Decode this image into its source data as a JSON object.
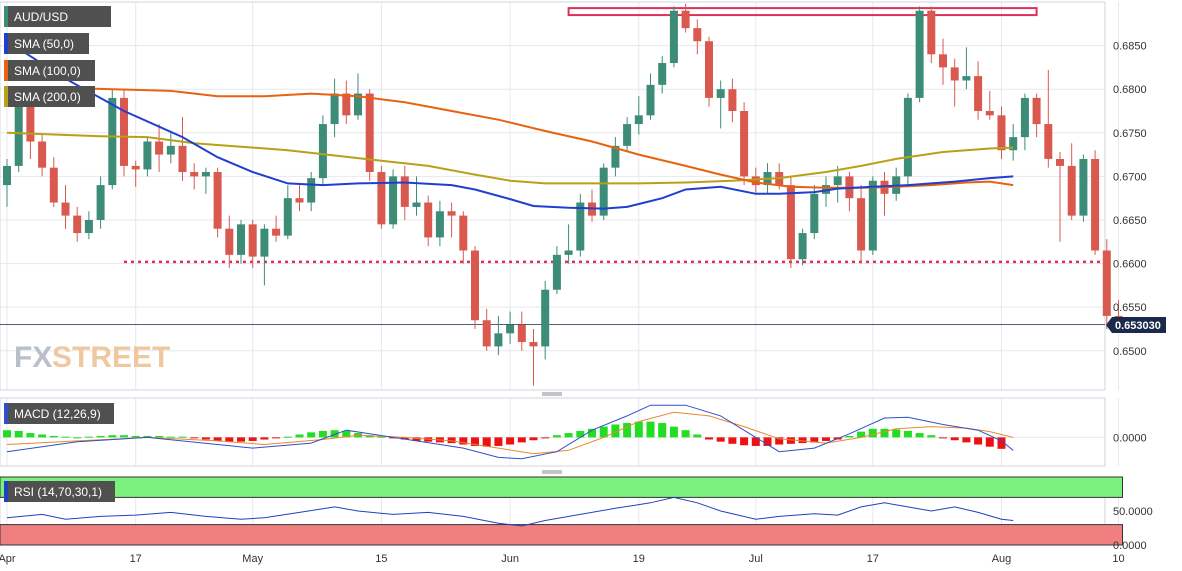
{
  "colors": {
    "up": "#3c8c78",
    "down": "#d9594f",
    "sma50": "#1f3fcf",
    "sma100": "#e8620f",
    "sma200": "#b8a018",
    "macd_line": "#3050c8",
    "signal_line": "#e88a30",
    "hist_pos": "#22dd22",
    "hist_neg": "#ee1111",
    "rsi_line": "#2040c0",
    "rsi_over": "#7cf07c",
    "rsi_under": "#f08080",
    "level": "#e0305a",
    "grid": "#e6e8ec",
    "text": "#333333",
    "legend_bg": "#505050"
  },
  "legend": {
    "symbol": "AUD/USD",
    "sma50": "SMA (50,0)",
    "sma100": "SMA (100,0)",
    "sma200": "SMA (200,0)",
    "macd": "MACD (12,26,9)",
    "rsi": "RSI (14,70,30,1)"
  },
  "watermark": {
    "fx": "FX",
    "street": "STREET"
  },
  "last_price_label": "0.653030",
  "x_axis": {
    "labels": [
      {
        "i": 0,
        "text": "Apr"
      },
      {
        "i": 11,
        "text": "17"
      },
      {
        "i": 21,
        "text": "May"
      },
      {
        "i": 32,
        "text": "15"
      },
      {
        "i": 43,
        "text": "Jun"
      },
      {
        "i": 54,
        "text": "19"
      },
      {
        "i": 64,
        "text": "Jul"
      },
      {
        "i": 74,
        "text": "17"
      },
      {
        "i": 85,
        "text": "Aug"
      },
      {
        "i": 95,
        "text": "10"
      }
    ]
  },
  "macd_axis": {
    "ticks": [
      0
    ],
    "labels": [
      "0.0000"
    ],
    "ylim": [
      -0.004,
      0.0055
    ]
  },
  "rsi_axis": {
    "ticks": [
      50,
      0
    ],
    "labels": [
      "50.0000",
      "0.0000"
    ],
    "ylim": [
      0,
      100
    ]
  },
  "chart_data": {
    "type": "candlestick",
    "ylim": [
      0.6455,
      0.69
    ],
    "y_ticks": [
      0.65,
      0.655,
      0.66,
      0.665,
      0.67,
      0.675,
      0.68,
      0.685
    ],
    "y_tick_labels": [
      "0.6500",
      "0.6550",
      "0.6600",
      "0.6650",
      "0.6700",
      "0.6750",
      "0.6800",
      "0.6850"
    ],
    "last_price": 0.65303,
    "support_line": 0.6602,
    "resistance_zone": [
      0.6885,
      0.6893
    ],
    "candles": [
      [
        0.669,
        0.672,
        0.6665,
        0.6712
      ],
      [
        0.6712,
        0.679,
        0.6705,
        0.678
      ],
      [
        0.678,
        0.68,
        0.672,
        0.674
      ],
      [
        0.674,
        0.6748,
        0.67,
        0.671
      ],
      [
        0.671,
        0.6722,
        0.6665,
        0.667
      ],
      [
        0.667,
        0.669,
        0.664,
        0.6655
      ],
      [
        0.6655,
        0.6665,
        0.6625,
        0.6635
      ],
      [
        0.6635,
        0.666,
        0.6628,
        0.665
      ],
      [
        0.665,
        0.67,
        0.664,
        0.669
      ],
      [
        0.669,
        0.68,
        0.6685,
        0.679
      ],
      [
        0.679,
        0.68,
        0.67,
        0.6712
      ],
      [
        0.6712,
        0.6718,
        0.6688,
        0.6708
      ],
      [
        0.6708,
        0.6745,
        0.67,
        0.674
      ],
      [
        0.674,
        0.676,
        0.6705,
        0.6725
      ],
      [
        0.6725,
        0.675,
        0.6715,
        0.6735
      ],
      [
        0.6735,
        0.6768,
        0.6695,
        0.6705
      ],
      [
        0.6705,
        0.6715,
        0.6685,
        0.67
      ],
      [
        0.67,
        0.671,
        0.668,
        0.6705
      ],
      [
        0.6705,
        0.671,
        0.663,
        0.664
      ],
      [
        0.664,
        0.6655,
        0.6595,
        0.661
      ],
      [
        0.661,
        0.665,
        0.66,
        0.6645
      ],
      [
        0.6645,
        0.665,
        0.6595,
        0.6608
      ],
      [
        0.6608,
        0.6645,
        0.6575,
        0.664
      ],
      [
        0.664,
        0.6655,
        0.6625,
        0.6632
      ],
      [
        0.6632,
        0.669,
        0.6628,
        0.6675
      ],
      [
        0.6675,
        0.669,
        0.666,
        0.667
      ],
      [
        0.667,
        0.6705,
        0.666,
        0.6698
      ],
      [
        0.6698,
        0.677,
        0.669,
        0.676
      ],
      [
        0.676,
        0.6812,
        0.6745,
        0.6795
      ],
      [
        0.6795,
        0.681,
        0.676,
        0.677
      ],
      [
        0.677,
        0.6818,
        0.6765,
        0.6795
      ],
      [
        0.6795,
        0.68,
        0.6695,
        0.6705
      ],
      [
        0.6705,
        0.6712,
        0.664,
        0.6645
      ],
      [
        0.6645,
        0.6708,
        0.664,
        0.67
      ],
      [
        0.67,
        0.6712,
        0.665,
        0.6665
      ],
      [
        0.6665,
        0.67,
        0.6655,
        0.667
      ],
      [
        0.667,
        0.6678,
        0.662,
        0.663
      ],
      [
        0.663,
        0.6672,
        0.662,
        0.666
      ],
      [
        0.666,
        0.667,
        0.663,
        0.6655
      ],
      [
        0.6655,
        0.666,
        0.66,
        0.6615
      ],
      [
        0.6615,
        0.662,
        0.6525,
        0.6535
      ],
      [
        0.6535,
        0.6548,
        0.65,
        0.6505
      ],
      [
        0.6505,
        0.654,
        0.6495,
        0.652
      ],
      [
        0.652,
        0.6545,
        0.6508,
        0.653
      ],
      [
        0.653,
        0.6545,
        0.65,
        0.651
      ],
      [
        0.651,
        0.6525,
        0.646,
        0.6505
      ],
      [
        0.6505,
        0.658,
        0.649,
        0.657
      ],
      [
        0.657,
        0.662,
        0.6565,
        0.661
      ],
      [
        0.661,
        0.6645,
        0.66,
        0.6615
      ],
      [
        0.6615,
        0.668,
        0.6608,
        0.667
      ],
      [
        0.667,
        0.6685,
        0.6648,
        0.6655
      ],
      [
        0.6655,
        0.6715,
        0.665,
        0.671
      ],
      [
        0.671,
        0.6745,
        0.67,
        0.6735
      ],
      [
        0.6735,
        0.6768,
        0.6728,
        0.676
      ],
      [
        0.676,
        0.6792,
        0.6748,
        0.677
      ],
      [
        0.677,
        0.6818,
        0.6765,
        0.6805
      ],
      [
        0.6805,
        0.6838,
        0.6795,
        0.683
      ],
      [
        0.683,
        0.6895,
        0.6825,
        0.689
      ],
      [
        0.689,
        0.6898,
        0.6865,
        0.687
      ],
      [
        0.687,
        0.688,
        0.684,
        0.6855
      ],
      [
        0.6855,
        0.686,
        0.678,
        0.679
      ],
      [
        0.679,
        0.681,
        0.6755,
        0.68
      ],
      [
        0.68,
        0.6812,
        0.6762,
        0.6775
      ],
      [
        0.6775,
        0.6785,
        0.669,
        0.67
      ],
      [
        0.67,
        0.671,
        0.668,
        0.669
      ],
      [
        0.669,
        0.6715,
        0.668,
        0.6705
      ],
      [
        0.6705,
        0.6715,
        0.6685,
        0.669
      ],
      [
        0.669,
        0.67,
        0.6595,
        0.6605
      ],
      [
        0.6605,
        0.664,
        0.6598,
        0.6635
      ],
      [
        0.6635,
        0.669,
        0.6628,
        0.668
      ],
      [
        0.668,
        0.67,
        0.6665,
        0.669
      ],
      [
        0.669,
        0.6712,
        0.667,
        0.67
      ],
      [
        0.67,
        0.6705,
        0.666,
        0.6675
      ],
      [
        0.6675,
        0.669,
        0.66,
        0.6615
      ],
      [
        0.6615,
        0.67,
        0.661,
        0.6695
      ],
      [
        0.6695,
        0.6705,
        0.6655,
        0.668
      ],
      [
        0.668,
        0.671,
        0.6672,
        0.67
      ],
      [
        0.67,
        0.6795,
        0.669,
        0.679
      ],
      [
        0.679,
        0.6895,
        0.6785,
        0.689
      ],
      [
        0.689,
        0.6895,
        0.683,
        0.684
      ],
      [
        0.684,
        0.6858,
        0.6805,
        0.6825
      ],
      [
        0.6825,
        0.6835,
        0.678,
        0.681
      ],
      [
        0.681,
        0.6848,
        0.68,
        0.6815
      ],
      [
        0.6815,
        0.6832,
        0.6765,
        0.6775
      ],
      [
        0.6775,
        0.6798,
        0.6765,
        0.677
      ],
      [
        0.677,
        0.678,
        0.672,
        0.673
      ],
      [
        0.673,
        0.676,
        0.6718,
        0.6745
      ],
      [
        0.6745,
        0.6795,
        0.673,
        0.679
      ],
      [
        0.679,
        0.6795,
        0.6745,
        0.676
      ],
      [
        0.676,
        0.6822,
        0.671,
        0.672
      ],
      [
        0.672,
        0.6728,
        0.6625,
        0.6712
      ],
      [
        0.6712,
        0.6738,
        0.665,
        0.6655
      ],
      [
        0.6655,
        0.6725,
        0.6648,
        0.672
      ],
      [
        0.672,
        0.673,
        0.661,
        0.6615
      ],
      [
        0.6615,
        0.6628,
        0.6525,
        0.654
      ],
      [
        0.654,
        0.6558,
        0.6525,
        0.653
      ]
    ],
    "sma50": [
      [
        0,
        0.6855
      ],
      [
        5,
        0.6812
      ],
      [
        10,
        0.6775
      ],
      [
        15,
        0.6745
      ],
      [
        18,
        0.6722
      ],
      [
        21,
        0.6705
      ],
      [
        24,
        0.6692
      ],
      [
        27,
        0.669
      ],
      [
        30,
        0.6692
      ],
      [
        34,
        0.6693
      ],
      [
        38,
        0.669
      ],
      [
        40,
        0.6685
      ],
      [
        43,
        0.6674
      ],
      [
        45,
        0.6666
      ],
      [
        48,
        0.6664
      ],
      [
        51,
        0.6663
      ],
      [
        53,
        0.6665
      ],
      [
        56,
        0.6675
      ],
      [
        58,
        0.6685
      ],
      [
        61,
        0.6688
      ],
      [
        64,
        0.668
      ],
      [
        66,
        0.668
      ],
      [
        69,
        0.6682
      ],
      [
        71,
        0.6686
      ],
      [
        74,
        0.6688
      ],
      [
        77,
        0.669
      ],
      [
        81,
        0.6694
      ],
      [
        84,
        0.6698
      ],
      [
        86,
        0.67
      ]
    ],
    "sma100": [
      [
        0,
        0.68
      ],
      [
        4,
        0.6802
      ],
      [
        9,
        0.68
      ],
      [
        14,
        0.6798
      ],
      [
        18,
        0.6792
      ],
      [
        22,
        0.6792
      ],
      [
        26,
        0.6795
      ],
      [
        30,
        0.6792
      ],
      [
        34,
        0.6785
      ],
      [
        38,
        0.6775
      ],
      [
        42,
        0.6765
      ],
      [
        46,
        0.6752
      ],
      [
        50,
        0.674
      ],
      [
        54,
        0.6725
      ],
      [
        58,
        0.6712
      ],
      [
        61,
        0.6702
      ],
      [
        64,
        0.6693
      ],
      [
        67,
        0.6688
      ],
      [
        70,
        0.6687
      ],
      [
        73,
        0.6687
      ],
      [
        76,
        0.6688
      ],
      [
        79,
        0.669
      ],
      [
        82,
        0.6693
      ],
      [
        84,
        0.6694
      ],
      [
        86,
        0.669
      ]
    ],
    "sma200": [
      [
        0,
        0.675
      ],
      [
        4,
        0.6748
      ],
      [
        8,
        0.6746
      ],
      [
        12,
        0.6745
      ],
      [
        16,
        0.6738
      ],
      [
        20,
        0.6734
      ],
      [
        24,
        0.673
      ],
      [
        28,
        0.6724
      ],
      [
        32,
        0.6718
      ],
      [
        36,
        0.6712
      ],
      [
        40,
        0.6702
      ],
      [
        43,
        0.6695
      ],
      [
        46,
        0.6692
      ],
      [
        50,
        0.6692
      ],
      [
        54,
        0.6692
      ],
      [
        58,
        0.6693
      ],
      [
        62,
        0.6695
      ],
      [
        66,
        0.6698
      ],
      [
        70,
        0.6705
      ],
      [
        73,
        0.6712
      ],
      [
        76,
        0.672
      ],
      [
        80,
        0.6728
      ],
      [
        84,
        0.6732
      ],
      [
        86,
        0.6733
      ]
    ],
    "macd_hist": [
      0.001,
      0.0009,
      0.0006,
      0.0004,
      0.0002,
      0.0001,
      0.0,
      0.0001,
      0.0002,
      0.0003,
      0.0003,
      0.0002,
      0.0002,
      0.0002,
      0.0001,
      0.0001,
      -0.0001,
      -0.0003,
      -0.0005,
      -0.0006,
      -0.0006,
      -0.0005,
      -0.0003,
      -0.0001,
      0.0001,
      0.0004,
      0.0007,
      0.0009,
      0.001,
      0.0009,
      0.0006,
      0.0003,
      0.0001,
      -0.0001,
      -0.0003,
      -0.0005,
      -0.0006,
      -0.0007,
      -0.0008,
      -0.001,
      -0.0012,
      -0.0013,
      -0.0012,
      -0.001,
      -0.0007,
      -0.0004,
      -0.0001,
      0.0003,
      0.0006,
      0.0009,
      0.0012,
      0.0015,
      0.0018,
      0.002,
      0.0022,
      0.0022,
      0.002,
      0.0015,
      0.001,
      0.0004,
      -0.0003,
      -0.0006,
      -0.0009,
      -0.0011,
      -0.0012,
      -0.0012,
      -0.001,
      -0.0009,
      -0.0008,
      -0.0007,
      -0.0005,
      -0.0003,
      0.0002,
      0.0008,
      0.0012,
      0.0012,
      0.0011,
      0.0009,
      0.0006,
      0.0003,
      -0.0001,
      -0.0004,
      -0.0007,
      -0.001,
      -0.0013,
      -0.0016
    ],
    "macd_line": [
      [
        0,
        -0.002
      ],
      [
        6,
        -0.0006
      ],
      [
        12,
        0.0
      ],
      [
        18,
        -0.001
      ],
      [
        21,
        -0.0015
      ],
      [
        26,
        -0.0008
      ],
      [
        29,
        0.001
      ],
      [
        31,
        0.0005
      ],
      [
        35,
        -0.0005
      ],
      [
        39,
        -0.0015
      ],
      [
        42,
        -0.0028
      ],
      [
        44,
        -0.003
      ],
      [
        47,
        -0.002
      ],
      [
        50,
        0.001
      ],
      [
        53,
        0.003
      ],
      [
        55,
        0.0045
      ],
      [
        58,
        0.0045
      ],
      [
        61,
        0.003
      ],
      [
        64,
        0.0
      ],
      [
        66,
        -0.002
      ],
      [
        69,
        -0.0015
      ],
      [
        72,
        0.0005
      ],
      [
        75,
        0.0027
      ],
      [
        77,
        0.0028
      ],
      [
        80,
        0.0018
      ],
      [
        83,
        0.001
      ],
      [
        85,
        -0.0005
      ],
      [
        86,
        -0.0018
      ]
    ],
    "signal_line": [
      [
        0,
        -0.001
      ],
      [
        6,
        -0.0005
      ],
      [
        12,
        0.0
      ],
      [
        18,
        -0.0005
      ],
      [
        22,
        -0.001
      ],
      [
        27,
        -0.0003
      ],
      [
        30,
        0.0003
      ],
      [
        34,
        0.0
      ],
      [
        38,
        -0.0005
      ],
      [
        42,
        -0.0015
      ],
      [
        45,
        -0.0023
      ],
      [
        48,
        -0.0018
      ],
      [
        51,
        0.0
      ],
      [
        54,
        0.0022
      ],
      [
        57,
        0.0035
      ],
      [
        60,
        0.003
      ],
      [
        63,
        0.0015
      ],
      [
        66,
        -0.0002
      ],
      [
        70,
        -0.0008
      ],
      [
        73,
        0.0
      ],
      [
        76,
        0.0012
      ],
      [
        79,
        0.0015
      ],
      [
        82,
        0.0013
      ],
      [
        84,
        0.0008
      ],
      [
        86,
        0.0
      ]
    ],
    "rsi": [
      [
        0,
        40
      ],
      [
        3,
        45
      ],
      [
        5,
        38
      ],
      [
        8,
        42
      ],
      [
        11,
        44
      ],
      [
        14,
        48
      ],
      [
        17,
        42
      ],
      [
        20,
        38
      ],
      [
        22,
        40
      ],
      [
        25,
        48
      ],
      [
        28,
        56
      ],
      [
        30,
        50
      ],
      [
        33,
        45
      ],
      [
        36,
        48
      ],
      [
        39,
        42
      ],
      [
        42,
        32
      ],
      [
        44,
        28
      ],
      [
        46,
        36
      ],
      [
        49,
        45
      ],
      [
        52,
        54
      ],
      [
        55,
        62
      ],
      [
        57,
        70
      ],
      [
        59,
        62
      ],
      [
        61,
        50
      ],
      [
        64,
        38
      ],
      [
        66,
        42
      ],
      [
        69,
        46
      ],
      [
        71,
        44
      ],
      [
        73,
        56
      ],
      [
        75,
        62
      ],
      [
        77,
        56
      ],
      [
        79,
        50
      ],
      [
        81,
        56
      ],
      [
        83,
        48
      ],
      [
        85,
        38
      ],
      [
        86,
        36
      ]
    ],
    "rsi_overbought": 70,
    "rsi_oversold": 30
  }
}
